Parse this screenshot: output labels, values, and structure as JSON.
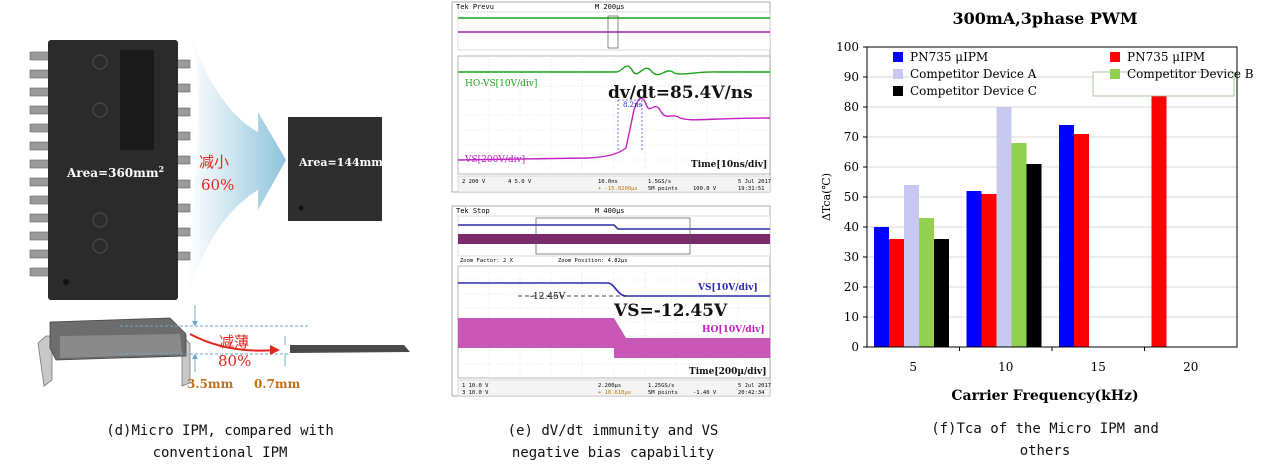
{
  "panel_d": {
    "big_area": "Area=360mm",
    "big_area_sup": "2",
    "small_area": "Area=144mm",
    "small_area_sup": "2",
    "reduce_label": "减小",
    "reduce_pct": "60%",
    "thin_label": "减薄",
    "thin_pct": "80%",
    "thick_big": "3.5mm",
    "thick_small": "0.7mm",
    "caption": "(d)Micro IPM, compared with\nconventional IPM"
  },
  "panel_e": {
    "top": {
      "header_left": "Tek Prevu",
      "header_mid": "M 200µs",
      "ho_label": "HO-VS[10V/div]",
      "dvdt": "dv/dt=85.4V/ns",
      "time_label": "8.2ns",
      "vs_label": "VS[200V/div]",
      "time_div": "Time[10ns/div]",
      "footer": [
        "2  200 V",
        "4  5.0 V",
        "10.0ns",
        "1.5GS/s",
        "5 Jul 2017",
        "100.0 V",
        "19:31:51",
        "+  -15.0200µs",
        "5M points"
      ]
    },
    "bottom": {
      "header_left": "Tek Stop",
      "header_mid": "M 400µs",
      "zoom_factor": "Zoom Factor: 2 X",
      "zoom_position": "Zoom Position: 4.82µs",
      "vs_label": "VS[10V/div]",
      "level": "-12.45V",
      "vs_value": "VS=-12.45V",
      "ho_label": "HO[10V/div]",
      "time_div": "Time[200µ/div]",
      "footer": [
        "1  10.0 V",
        "3  10.0 V",
        "2.200µs",
        "1.25GS/s",
        "5 Jul 2017",
        "-1.40 V",
        "20:42:34",
        "+  10.610µs",
        "5M points"
      ]
    },
    "caption": "(e)  dV/dt immunity and VS\nnegative bias capability"
  },
  "chart_data": {
    "type": "bar",
    "title": "300mA,3phase PWM",
    "xlabel": "Carrier Frequency(kHz)",
    "ylabel": "ΔTca(℃)",
    "ylim": [
      0,
      100
    ],
    "yticks": [
      "0",
      "10",
      "20",
      "30",
      "40",
      "50",
      "60",
      "70",
      "80",
      "90",
      "100"
    ],
    "categories": [
      "5",
      "10",
      "15",
      "20"
    ],
    "grid": true,
    "legend_placement": "top",
    "series": [
      {
        "name": "PN735 μIPM",
        "color": "#0000ff",
        "values": [
          40,
          52,
          74,
          null
        ]
      },
      {
        "name": "PN735 μIPM",
        "color": "#ff0000",
        "values": [
          36,
          51,
          71,
          88
        ]
      },
      {
        "name": "Competitor Device A",
        "color": "#c8c8f0",
        "values": [
          54,
          80,
          null,
          null
        ]
      },
      {
        "name": "Competitor Device B",
        "color": "#92d050",
        "values": [
          43,
          68,
          null,
          null
        ]
      },
      {
        "name": "Competitor Device C",
        "color": "#000000",
        "values": [
          36,
          61,
          null,
          null
        ]
      }
    ],
    "caption": "(f)Tca of the Micro IPM and\nothers"
  }
}
